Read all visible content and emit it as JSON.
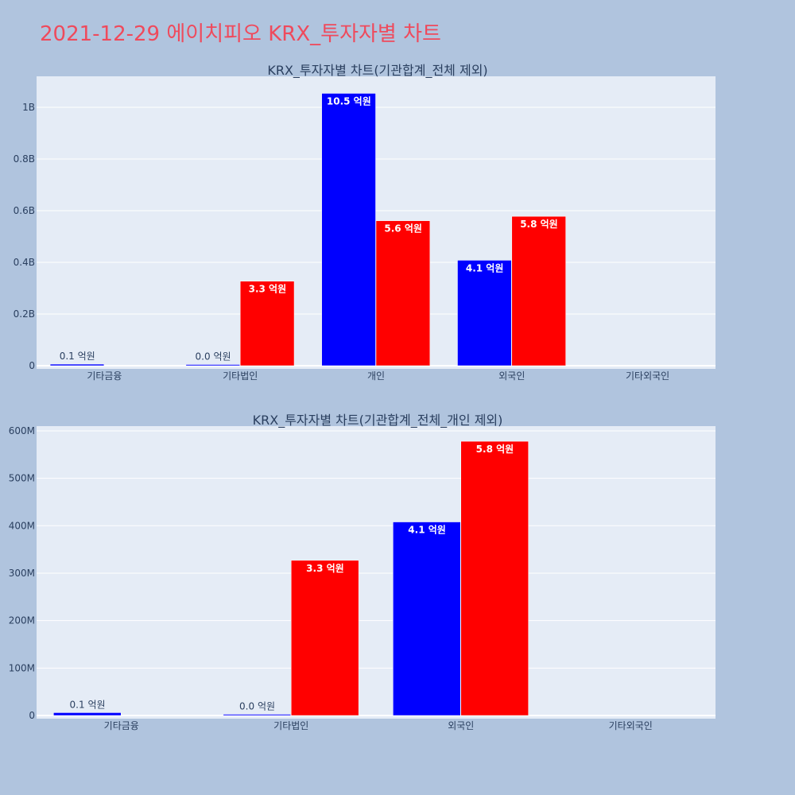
{
  "page": {
    "title": "2021-12-29 에이치피오 KRX_투자자별 차트"
  },
  "colors": {
    "background": "#b0c4de",
    "plot_bg": "#e5ecf6",
    "title": "#ef4a5c",
    "series_a": "#0000ff",
    "series_b": "#ff0000",
    "text": "#2a3f5f"
  },
  "chart_data": [
    {
      "type": "bar",
      "title": "KRX_투자자별 차트(기관합계_전체 제외)",
      "categories": [
        "기타금융",
        "기타법인",
        "개인",
        "외국인",
        "기타외국인"
      ],
      "series": [
        {
          "color": "#0000ff",
          "values": [
            6000000,
            2000000,
            1054000000,
            408000000,
            null
          ],
          "labels": [
            "0.1 억원",
            "0.0 억원",
            "10.5 억원",
            "4.1 억원",
            ""
          ]
        },
        {
          "color": "#ff0000",
          "values": [
            null,
            327000000,
            561000000,
            578000000,
            null
          ],
          "labels": [
            "",
            "3.3 억원",
            "5.6 억원",
            "5.8 억원",
            ""
          ]
        }
      ],
      "ylim": [
        0,
        1120000000
      ],
      "yticks": [
        {
          "value": 0,
          "label": "0"
        },
        {
          "value": 200000000,
          "label": "0.2B"
        },
        {
          "value": 400000000,
          "label": "0.4B"
        },
        {
          "value": 600000000,
          "label": "0.6B"
        },
        {
          "value": 800000000,
          "label": "0.8B"
        },
        {
          "value": 1000000000,
          "label": "1B"
        }
      ],
      "grid": true,
      "legend": "none"
    },
    {
      "type": "bar",
      "title": "KRX_투자자별 차트(기관합계_전체_개인 제외)",
      "categories": [
        "기타금융",
        "기타법인",
        "외국인",
        "기타외국인"
      ],
      "series": [
        {
          "color": "#0000ff",
          "values": [
            6000000,
            2000000,
            408000000,
            null
          ],
          "labels": [
            "0.1 억원",
            "0.0 억원",
            "4.1 억원",
            ""
          ]
        },
        {
          "color": "#ff0000",
          "values": [
            null,
            327000000,
            578000000,
            null
          ],
          "labels": [
            "",
            "3.3 억원",
            "5.8 억원",
            ""
          ]
        }
      ],
      "ylim": [
        0,
        610000000
      ],
      "yticks": [
        {
          "value": 0,
          "label": "0"
        },
        {
          "value": 100000000,
          "label": "100M"
        },
        {
          "value": 200000000,
          "label": "200M"
        },
        {
          "value": 300000000,
          "label": "300M"
        },
        {
          "value": 400000000,
          "label": "400M"
        },
        {
          "value": 500000000,
          "label": "500M"
        },
        {
          "value": 600000000,
          "label": "600M"
        }
      ],
      "grid": true,
      "legend": "none"
    }
  ]
}
